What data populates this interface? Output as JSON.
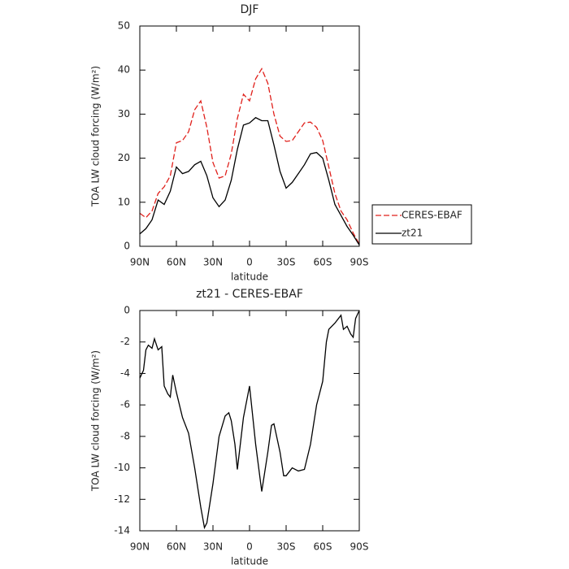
{
  "chart_data": [
    {
      "type": "line",
      "title": "DJF",
      "x_label": "latitude",
      "y_label": "TOA LW cloud forcing (W/m²)",
      "x": [
        90,
        85,
        80,
        75,
        70,
        65,
        60,
        55,
        50,
        45,
        40,
        35,
        30,
        25,
        20,
        15,
        10,
        5,
        0,
        -5,
        -10,
        -15,
        -20,
        -25,
        -30,
        -35,
        -40,
        -45,
        -50,
        -55,
        -60,
        -65,
        -70,
        -75,
        -80,
        -85,
        -90
      ],
      "series": [
        {
          "name": "CERES-EBAF",
          "color": "#e0201b",
          "dash": true,
          "values": [
            7.5,
            6.5,
            8,
            12,
            13.5,
            16,
            23.5,
            24,
            26,
            31,
            33,
            27,
            19,
            15.5,
            16,
            21,
            29,
            34.5,
            33,
            38,
            40.3,
            37,
            30,
            25,
            23.8,
            24,
            26,
            28,
            28.2,
            27,
            24,
            18,
            12,
            8,
            6,
            3,
            0.5
          ]
        },
        {
          "name": "zt21",
          "color": "#000000",
          "dash": false,
          "values": [
            2.8,
            4,
            6,
            10.5,
            9.5,
            12.5,
            18,
            16.5,
            17,
            18.5,
            19.3,
            16,
            11,
            9,
            10.5,
            15,
            22,
            27.5,
            28,
            29.2,
            28.5,
            28.5,
            23,
            17,
            13.2,
            14.5,
            16.5,
            18.5,
            21,
            21.3,
            20,
            15,
            9.5,
            7,
            4.5,
            2.5,
            0.3
          ]
        }
      ],
      "xlim": [
        90,
        -90
      ],
      "xticks": [
        {
          "value": 90,
          "label": "90N"
        },
        {
          "value": 60,
          "label": "60N"
        },
        {
          "value": 30,
          "label": "30N"
        },
        0,
        {
          "value": -30,
          "label": "30S"
        },
        {
          "value": -60,
          "label": "60S"
        },
        {
          "value": -90,
          "label": "90S"
        }
      ],
      "ylim": [
        0,
        50
      ],
      "yticks": [
        0,
        10,
        20,
        30,
        40,
        50
      ],
      "legend": "right"
    },
    {
      "type": "line",
      "title": "zt21 - CERES-EBAF",
      "x_label": "latitude",
      "y_label": "TOA LW cloud forcing (W/m²)",
      "x": [
        90,
        87,
        85,
        83,
        80,
        78,
        75,
        72,
        70,
        67,
        65,
        63,
        60,
        55,
        50,
        45,
        40,
        37,
        35,
        30,
        25,
        20,
        17,
        15,
        12,
        10,
        5,
        0,
        -5,
        -10,
        -15,
        -18,
        -20,
        -25,
        -28,
        -30,
        -35,
        -40,
        -45,
        -50,
        -55,
        -60,
        -63,
        -65,
        -70,
        -75,
        -77,
        -80,
        -83,
        -85,
        -87,
        -90
      ],
      "series": [
        {
          "color": "#000000",
          "dash": false,
          "values": [
            -4.3,
            -3.8,
            -2.5,
            -2.2,
            -2.4,
            -1.8,
            -2.5,
            -2.3,
            -4.8,
            -5.3,
            -5.5,
            -4.1,
            -5.2,
            -6.8,
            -7.8,
            -10,
            -12.5,
            -13.8,
            -13.5,
            -11,
            -8,
            -6.7,
            -6.5,
            -7,
            -8.5,
            -10.1,
            -6.8,
            -4.8,
            -8.5,
            -11.5,
            -9,
            -7.3,
            -7.2,
            -9,
            -10.5,
            -10.5,
            -10,
            -10.2,
            -10.1,
            -8.5,
            -6,
            -4.5,
            -2,
            -1.2,
            -0.8,
            -0.3,
            -1.2,
            -1,
            -1.5,
            -1.7,
            -0.5,
            0
          ]
        }
      ],
      "xlim": [
        90,
        -90
      ],
      "xticks": [
        {
          "value": 90,
          "label": "90N"
        },
        {
          "value": 60,
          "label": "60N"
        },
        {
          "value": 30,
          "label": "30N"
        },
        0,
        {
          "value": -30,
          "label": "30S"
        },
        {
          "value": -60,
          "label": "60S"
        },
        {
          "value": -90,
          "label": "90S"
        }
      ],
      "ylim": [
        -14,
        0
      ],
      "yticks": [
        -14,
        -12,
        -10,
        -8,
        -6,
        -4,
        -2,
        0
      ]
    }
  ]
}
